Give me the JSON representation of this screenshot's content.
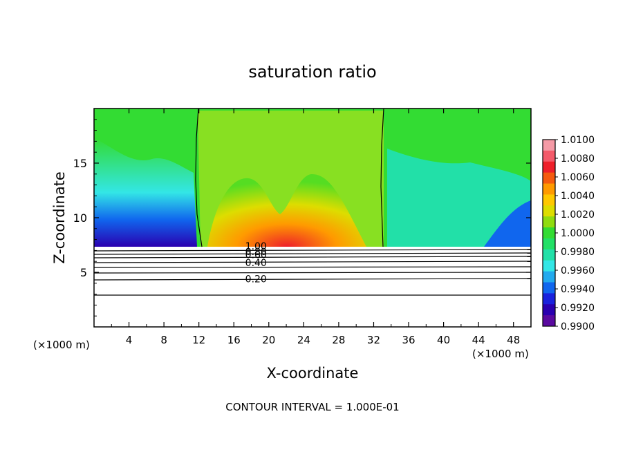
{
  "chart_data": {
    "type": "heatmap",
    "title": "saturation ratio",
    "xlabel": "X-coordinate",
    "ylabel": "Z-coordinate",
    "x_unit_left": "(×1000 m)",
    "x_unit_right": "(×1000 m)",
    "footer": "CONTOUR INTERVAL = 1.000E-01",
    "xlim": [
      0,
      50
    ],
    "ylim": [
      0,
      20
    ],
    "x_ticks": [
      4,
      8,
      12,
      16,
      20,
      24,
      28,
      32,
      36,
      40,
      44,
      48
    ],
    "y_ticks": [
      5,
      10,
      15
    ],
    "colorbar": {
      "ticks": [
        "1.0100",
        "1.0080",
        "1.0060",
        "1.0040",
        "1.0020",
        "1.0000",
        "0.9980",
        "0.9960",
        "0.9940",
        "0.9920",
        "0.9900"
      ],
      "colors": [
        "#f59aa6",
        "#f45a6a",
        "#ee1f2a",
        "#f55b0f",
        "#ff9a00",
        "#ffc800",
        "#dddd00",
        "#90dc10",
        "#33dc33",
        "#22e066",
        "#22e0a8",
        "#33e6e6",
        "#22aaee",
        "#1066ee",
        "#1a22dd",
        "#2a00b0",
        "#5a0aa0"
      ]
    },
    "contour_labels": [
      "1.00",
      "0.80",
      "0.60",
      "0.40",
      "0.20"
    ]
  }
}
